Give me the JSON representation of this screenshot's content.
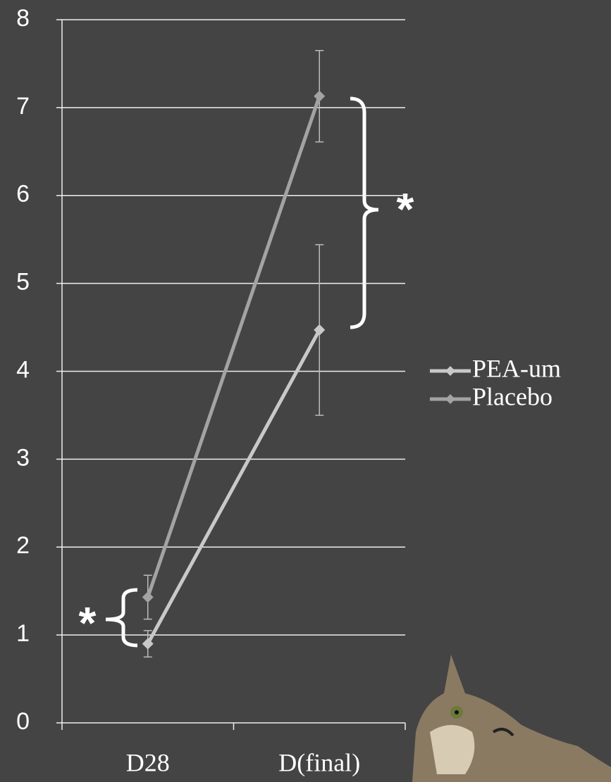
{
  "chart_data": {
    "type": "line",
    "categories": [
      "D28",
      "D(final)"
    ],
    "series": [
      {
        "name": "PEA-um",
        "color": "#c9c9c9",
        "values": [
          0.9,
          4.47
        ],
        "errors": [
          0.15,
          0.97
        ]
      },
      {
        "name": "Placebo",
        "color": "#a3a3a3",
        "values": [
          1.43,
          7.13
        ],
        "errors": [
          0.25,
          0.52
        ]
      }
    ],
    "ylim": [
      0,
      8
    ],
    "yticks": [
      0,
      1,
      2,
      3,
      4,
      5,
      6,
      7,
      8
    ],
    "grid": true,
    "legend": "right",
    "annotations": [
      "*",
      "*"
    ]
  }
}
